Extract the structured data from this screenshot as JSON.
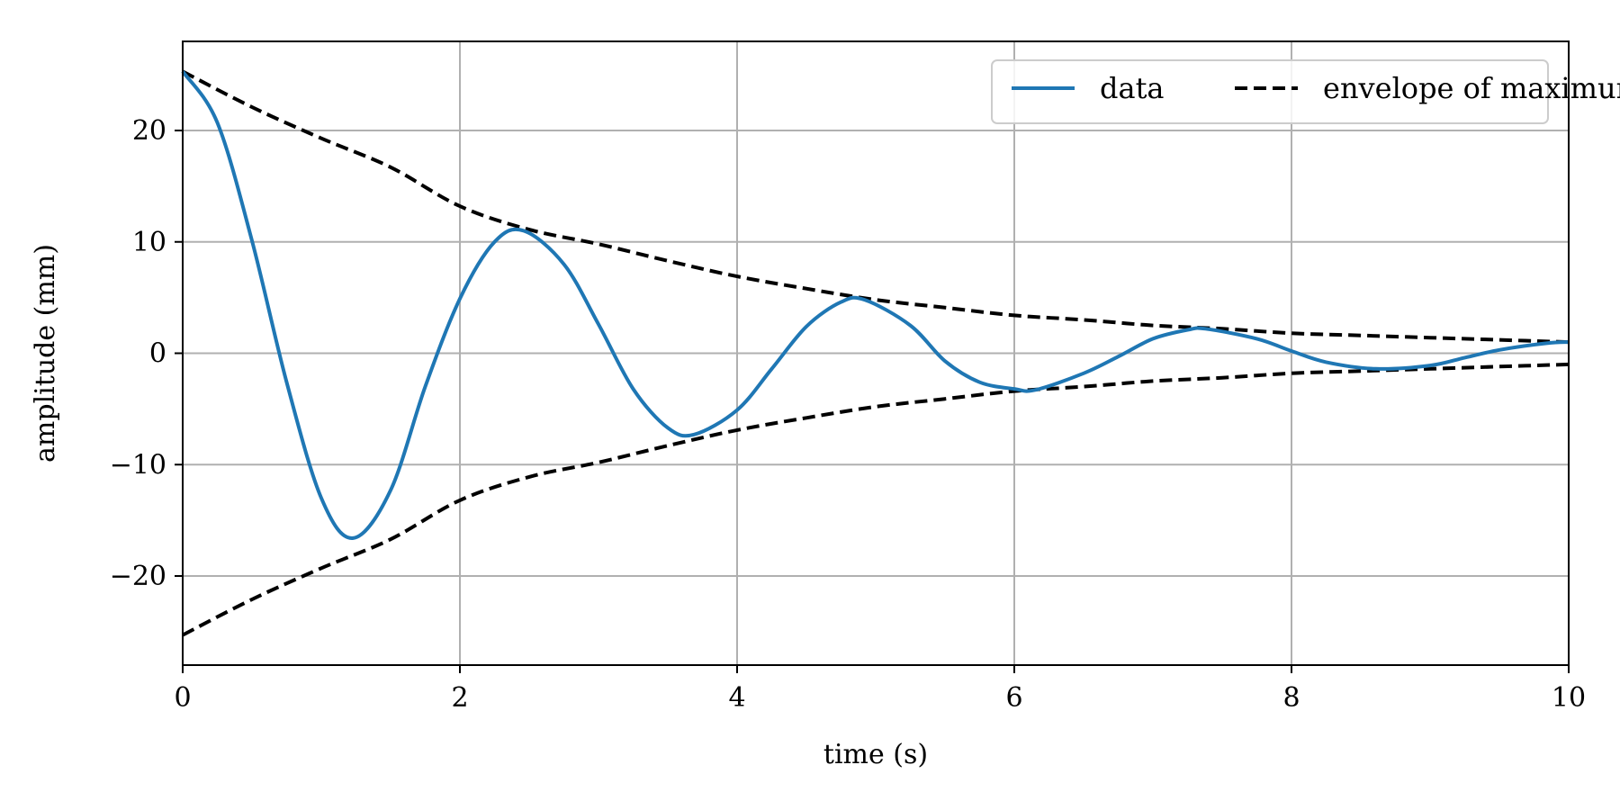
{
  "chart_data": {
    "type": "line",
    "title": "",
    "xlabel": "time (s)",
    "ylabel": "amplitude (mm)",
    "xlim": [
      0,
      10
    ],
    "ylim": [
      -28,
      28
    ],
    "xticks": [
      0,
      2,
      4,
      6,
      8,
      10
    ],
    "xtick_labels": [
      "0",
      "2",
      "4",
      "6",
      "8",
      "10"
    ],
    "yticks": [
      -20,
      -10,
      0,
      10,
      20
    ],
    "ytick_labels": [
      "−20",
      "−10",
      "0",
      "10",
      "20"
    ],
    "grid": true,
    "legend_position": "top-right",
    "colors": {
      "data": "#1f77b4",
      "envelope": "#000000",
      "grid": "#b0b0b0"
    },
    "series": [
      {
        "name": "data",
        "style": "solid",
        "x": [
          0,
          0.25,
          0.5,
          0.75,
          1.0,
          1.23,
          1.5,
          1.75,
          2.0,
          2.25,
          2.46,
          2.75,
          3.0,
          3.25,
          3.5,
          3.69,
          4.0,
          4.25,
          4.5,
          4.75,
          4.92,
          5.25,
          5.5,
          5.75,
          6.0,
          6.15,
          6.5,
          6.75,
          7.0,
          7.25,
          7.38,
          7.75,
          8.0,
          8.25,
          8.61,
          9.0,
          9.25,
          9.5,
          9.84,
          10.0
        ],
        "y": [
          25.3,
          20.7,
          10.1,
          -2.6,
          -13.0,
          -16.6,
          -12.3,
          -3.0,
          4.9,
          10.0,
          11.0,
          8.0,
          2.6,
          -3.2,
          -6.7,
          -7.3,
          -5.1,
          -1.4,
          2.4,
          4.6,
          4.8,
          2.5,
          -0.7,
          -2.6,
          -3.2,
          -3.3,
          -1.8,
          -0.3,
          1.3,
          2.1,
          2.2,
          1.3,
          0.2,
          -0.8,
          -1.4,
          -1.1,
          -0.4,
          0.3,
          0.9,
          1.0
        ]
      },
      {
        "name": "envelope of maximum values",
        "style": "dashed",
        "x": [
          0,
          0.5,
          1.0,
          1.5,
          2.0,
          2.5,
          3.0,
          3.5,
          4.0,
          4.5,
          5.0,
          5.5,
          6.0,
          6.5,
          7.0,
          7.5,
          8.0,
          8.5,
          9.0,
          9.5,
          10.0
        ],
        "y_upper": [
          25.3,
          22.1,
          19.3,
          16.7,
          13.2,
          11.1,
          9.8,
          8.3,
          6.9,
          5.8,
          4.8,
          4.1,
          3.4,
          3.0,
          2.5,
          2.2,
          1.8,
          1.6,
          1.4,
          1.2,
          1.0
        ],
        "y_lower": [
          -25.3,
          -22.1,
          -19.3,
          -16.7,
          -13.2,
          -11.1,
          -9.8,
          -8.3,
          -6.9,
          -5.8,
          -4.8,
          -4.1,
          -3.4,
          -3.0,
          -2.5,
          -2.2,
          -1.8,
          -1.6,
          -1.4,
          -1.2,
          -1.0
        ]
      }
    ]
  }
}
